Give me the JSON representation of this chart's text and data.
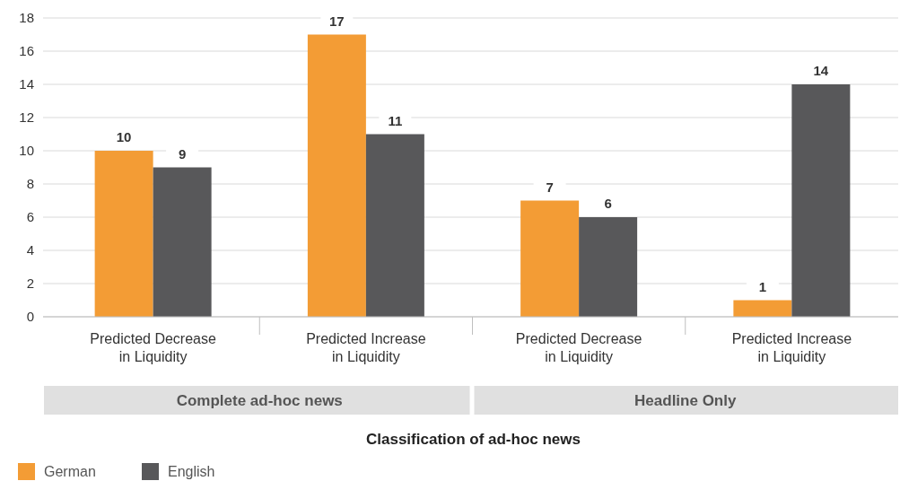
{
  "chart_data": {
    "type": "bar",
    "xlabel": "Classification of ad-hoc news",
    "categories": [
      "Predicted Decrease in Liquidity",
      "Predicted Increase in Liquidity",
      "Predicted Decrease in Liquidity",
      "Predicted Increase in Liquidity"
    ],
    "series": [
      {
        "name": "German",
        "color": "#f39c35",
        "values": [
          10,
          17,
          7,
          1
        ]
      },
      {
        "name": "English",
        "color": "#58585a",
        "values": [
          9,
          11,
          6,
          14
        ]
      }
    ],
    "ylim": [
      0,
      18
    ],
    "yticks": [
      0,
      2,
      4,
      6,
      8,
      10,
      12,
      14,
      16,
      18
    ],
    "grid": "y",
    "data_labels": true,
    "legend": "bottom left",
    "annotations": [
      "Complete ad-hoc news",
      "Headline Only"
    ]
  }
}
